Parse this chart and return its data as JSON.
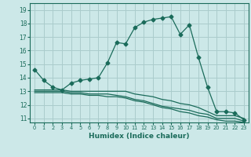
{
  "xlabel": "Humidex (Indice chaleur)",
  "bg_color": "#cce8e8",
  "grid_color": "#aacccc",
  "line_color": "#1a6b5a",
  "xlim": [
    -0.5,
    23.5
  ],
  "ylim": [
    10.7,
    19.5
  ],
  "yticks": [
    11,
    12,
    13,
    14,
    15,
    16,
    17,
    18,
    19
  ],
  "xticks": [
    0,
    1,
    2,
    3,
    4,
    5,
    6,
    7,
    8,
    9,
    10,
    11,
    12,
    13,
    14,
    15,
    16,
    17,
    18,
    19,
    20,
    21,
    22,
    23
  ],
  "series1_x": [
    0,
    1,
    2,
    3,
    4,
    5,
    6,
    7,
    8,
    9,
    10,
    11,
    12,
    13,
    14,
    15,
    16,
    17,
    18,
    19,
    20,
    21,
    22,
    23
  ],
  "series1_y": [
    14.6,
    13.8,
    13.3,
    13.1,
    13.6,
    13.8,
    13.9,
    14.0,
    15.1,
    16.6,
    16.5,
    17.7,
    18.1,
    18.3,
    18.4,
    18.5,
    17.2,
    17.9,
    15.5,
    13.3,
    11.5,
    11.5,
    11.4,
    10.9
  ],
  "series2_x": [
    0,
    2,
    3,
    4,
    5,
    6,
    7,
    8,
    9,
    10,
    11,
    12,
    13,
    14,
    15,
    16,
    17,
    18,
    19,
    20,
    21,
    22,
    23
  ],
  "series2_y": [
    13.1,
    13.1,
    13.1,
    13.0,
    13.0,
    13.0,
    13.0,
    13.0,
    13.0,
    13.0,
    12.8,
    12.7,
    12.6,
    12.4,
    12.3,
    12.1,
    12.0,
    11.8,
    11.5,
    11.2,
    11.2,
    11.2,
    11.0
  ],
  "series3_x": [
    0,
    2,
    3,
    4,
    5,
    6,
    7,
    8,
    9,
    10,
    11,
    12,
    13,
    14,
    15,
    16,
    17,
    18,
    19,
    20,
    21,
    22,
    23
  ],
  "series3_y": [
    13.0,
    13.0,
    13.0,
    12.9,
    12.9,
    12.8,
    12.8,
    12.8,
    12.7,
    12.6,
    12.4,
    12.3,
    12.1,
    11.9,
    11.8,
    11.7,
    11.6,
    11.4,
    11.3,
    11.0,
    11.0,
    11.0,
    10.8
  ],
  "series4_x": [
    0,
    2,
    3,
    4,
    5,
    6,
    7,
    8,
    9,
    10,
    11,
    12,
    13,
    14,
    15,
    16,
    17,
    18,
    19,
    20,
    21,
    22,
    23
  ],
  "series4_y": [
    12.9,
    12.9,
    12.9,
    12.8,
    12.8,
    12.7,
    12.7,
    12.6,
    12.6,
    12.5,
    12.3,
    12.2,
    12.0,
    11.8,
    11.7,
    11.5,
    11.4,
    11.2,
    11.1,
    10.9,
    10.8,
    10.8,
    10.7
  ]
}
